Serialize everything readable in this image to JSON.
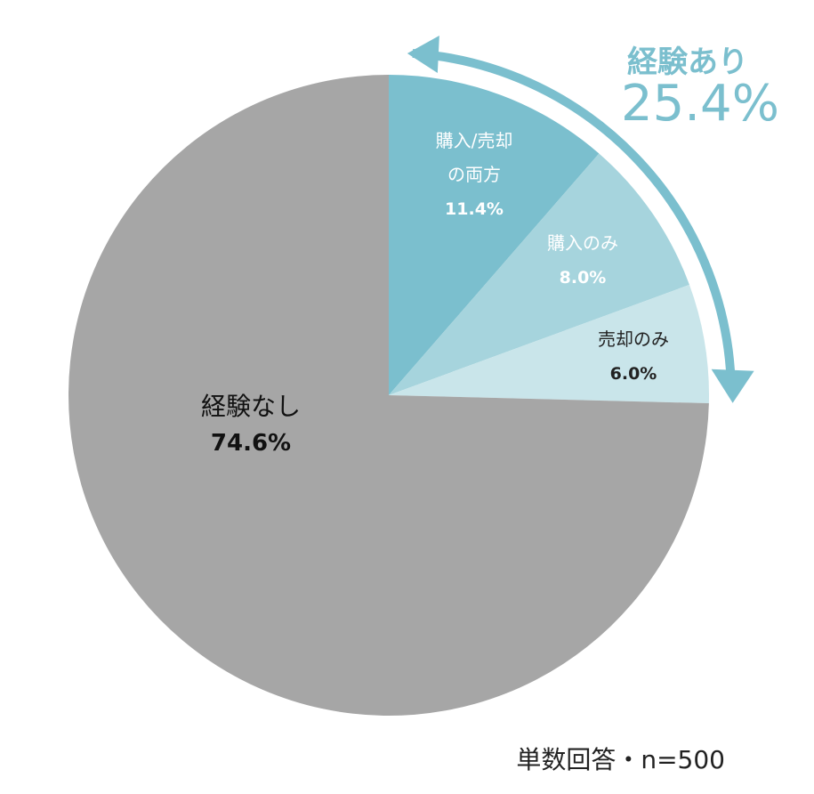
{
  "chart_data": {
    "type": "pie",
    "slices": [
      {
        "label_lines": [
          "購入/売却",
          "の両方"
        ],
        "value": 11.4,
        "value_label": "11.4%",
        "color": "#7bbfce",
        "text_color": "#ffffff"
      },
      {
        "label_lines": [
          "購入のみ"
        ],
        "value": 8.0,
        "value_label": "8.0%",
        "color": "#a6d4dd",
        "text_color": "#ffffff"
      },
      {
        "label_lines": [
          "売却のみ"
        ],
        "value": 6.0,
        "value_label": "6.0%",
        "color": "#c9e5ea",
        "text_color": "#222222"
      },
      {
        "label_lines": [
          "経験なし"
        ],
        "value": 74.6,
        "value_label": "74.6%",
        "color": "#a6a6a6",
        "text_color": "#111111"
      }
    ],
    "group_annotation": {
      "title": "経験あり",
      "value_label": "25.4%",
      "color": "#7bbfce"
    },
    "note": "単数回答・n=500"
  }
}
